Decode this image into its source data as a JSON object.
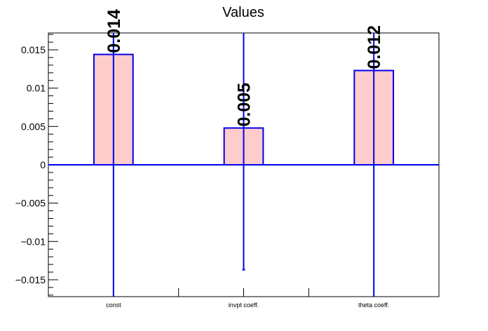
{
  "chart_data": {
    "type": "bar",
    "title": "Values",
    "xlabel": "",
    "ylabel": "",
    "categories": [
      "const",
      "invpt coeff.",
      "theta coeff."
    ],
    "values": [
      0.0144,
      0.0048,
      0.0123
    ],
    "value_labels": [
      "0.014",
      "0.005",
      "0.012"
    ],
    "errors": [
      0.034,
      0.0185,
      0.034
    ],
    "ylim": [
      -0.0172,
      0.0172
    ],
    "yticks": [
      -0.015,
      -0.01,
      -0.005,
      0,
      0.005,
      0.01,
      0.015
    ],
    "ytick_labels": [
      "−0.015",
      "−0.01",
      "−0.005",
      "0",
      "0.005",
      "0.01",
      "0.015"
    ],
    "grid": false,
    "legend": "none",
    "colors": {
      "bar_fill": "#ffcccc",
      "bar_edge": "#0000ee",
      "error_bar": "#0000ee",
      "zero_line": "#0000ee",
      "axis": "#000000"
    }
  }
}
